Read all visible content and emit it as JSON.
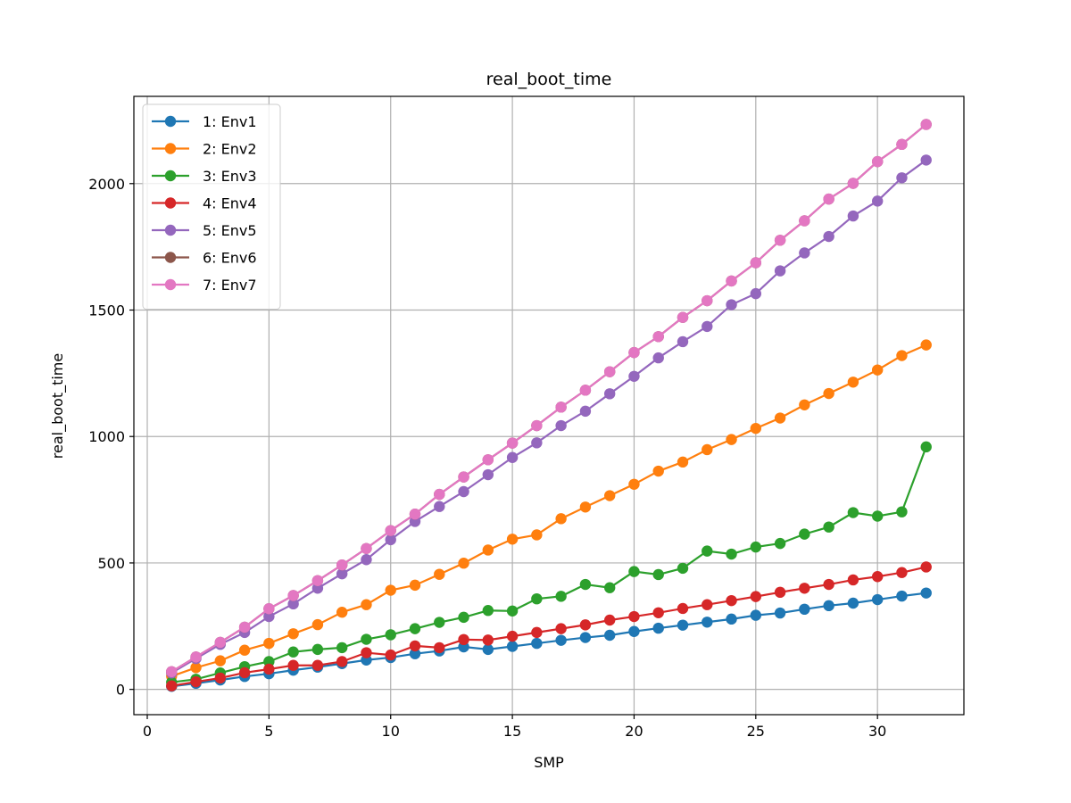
{
  "chart_data": {
    "type": "line",
    "title": "real_boot_time",
    "xlabel": "SMP",
    "ylabel": "real_boot_time",
    "xlim": [
      -0.55,
      33.55
    ],
    "ylim": [
      -100,
      2345
    ],
    "xticks": [
      0,
      5,
      10,
      15,
      20,
      25,
      30
    ],
    "yticks": [
      0,
      500,
      1000,
      1500,
      2000
    ],
    "grid": true,
    "legend_position": "upper-left",
    "x": [
      1,
      2,
      3,
      4,
      5,
      6,
      7,
      8,
      9,
      10,
      11,
      12,
      13,
      14,
      15,
      16,
      17,
      18,
      19,
      20,
      21,
      22,
      23,
      24,
      25,
      26,
      27,
      28,
      29,
      30,
      31,
      32
    ],
    "series": [
      {
        "name": "1: Env1",
        "color": "#1f77b4",
        "values": [
          12,
          24,
          37,
          51,
          62,
          76,
          88,
          102,
          116,
          126,
          141,
          152,
          168,
          158,
          170,
          182,
          194,
          205,
          214,
          229,
          242,
          254,
          266,
          278,
          293,
          302,
          317,
          331,
          341,
          355,
          369,
          381
        ]
      },
      {
        "name": "2: Env2",
        "color": "#ff7f0e",
        "values": [
          52,
          86,
          113,
          155,
          182,
          220,
          256,
          305,
          335,
          392,
          412,
          455,
          499,
          551,
          594,
          611,
          675,
          721,
          766,
          811,
          863,
          899,
          948,
          988,
          1032,
          1073,
          1125,
          1170,
          1215,
          1263,
          1320,
          1362
        ]
      },
      {
        "name": "3: Env3",
        "color": "#2ca02c",
        "values": [
          28,
          40,
          65,
          90,
          110,
          148,
          158,
          165,
          198,
          216,
          240,
          265,
          285,
          312,
          310,
          358,
          368,
          415,
          402,
          466,
          454,
          479,
          547,
          535,
          563,
          577,
          614,
          642,
          699,
          685,
          702,
          959
        ]
      },
      {
        "name": "4: Env4",
        "color": "#d62728",
        "values": [
          14,
          30,
          45,
          66,
          80,
          95,
          95,
          110,
          145,
          136,
          172,
          165,
          197,
          195,
          210,
          225,
          240,
          255,
          274,
          288,
          303,
          320,
          335,
          351,
          367,
          384,
          400,
          415,
          433,
          446,
          462,
          484
        ]
      },
      {
        "name": "5: Env5",
        "color": "#9467bd",
        "values": [
          65,
          122,
          178,
          225,
          288,
          338,
          400,
          457,
          513,
          592,
          664,
          723,
          782,
          849,
          917,
          975,
          1043,
          1100,
          1169,
          1238,
          1311,
          1375,
          1435,
          1521,
          1565,
          1655,
          1726,
          1791,
          1872,
          1931,
          2023,
          2093
        ]
      },
      {
        "name": "6: Env6",
        "color": "#8c564b",
        "values": [
          70,
          128,
          186,
          246,
          319,
          371,
          430,
          492,
          557,
          628,
          693,
          771,
          840,
          908,
          974,
          1043,
          1116,
          1183,
          1256,
          1332,
          1395,
          1471,
          1537,
          1615,
          1687,
          1776,
          1853,
          1939,
          2001,
          2087,
          2155,
          2234
        ]
      },
      {
        "name": "7: Env7",
        "color": "#e377c2",
        "values": [
          70,
          128,
          186,
          246,
          319,
          371,
          430,
          492,
          557,
          628,
          693,
          771,
          840,
          908,
          974,
          1043,
          1116,
          1183,
          1256,
          1332,
          1395,
          1471,
          1537,
          1615,
          1687,
          1776,
          1853,
          1939,
          2001,
          2087,
          2155,
          2234
        ]
      }
    ]
  }
}
